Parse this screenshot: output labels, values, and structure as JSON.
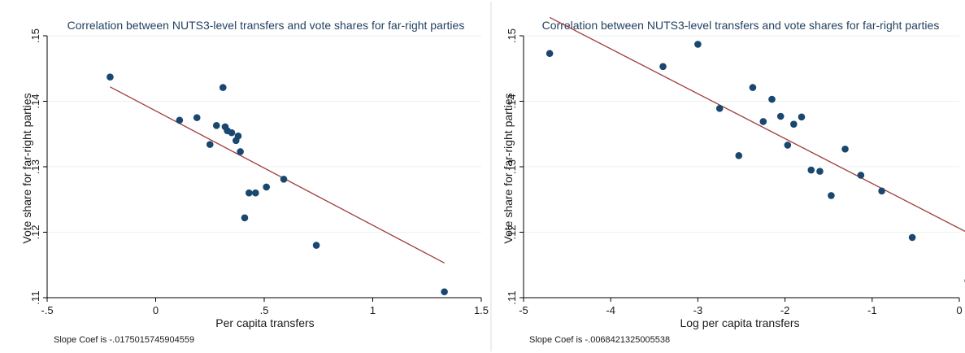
{
  "colors": {
    "marker": "#1a476f",
    "fit_line": "#a03d3d",
    "grid": "#eaf2f3",
    "axis": "#000000",
    "panel_border": "#dddddd"
  },
  "chart_data": [
    {
      "type": "scatter",
      "title": "Correlation between NUTS3-level transfers and vote shares for far-right parties",
      "xlabel": "Per capita transfers",
      "ylabel": "Vote share for far-right parties",
      "note": "Slope Coef is -.0175015745904559",
      "xlim": [
        -0.5,
        1.5
      ],
      "ylim": [
        0.11,
        0.15
      ],
      "xticks": [
        -0.5,
        0,
        0.5,
        1,
        1.5
      ],
      "xtick_labels": [
        "-.5",
        "0",
        ".5",
        "1",
        "1.5"
      ],
      "yticks": [
        0.11,
        0.12,
        0.13,
        0.14,
        0.15
      ],
      "ytick_labels": [
        ".11",
        ".12",
        ".13",
        ".14",
        ".15"
      ],
      "grid": true,
      "points": [
        {
          "x": -0.21,
          "y": 0.1437
        },
        {
          "x": 0.11,
          "y": 0.1371
        },
        {
          "x": 0.19,
          "y": 0.1375
        },
        {
          "x": 0.25,
          "y": 0.1334
        },
        {
          "x": 0.28,
          "y": 0.1363
        },
        {
          "x": 0.31,
          "y": 0.1421
        },
        {
          "x": 0.32,
          "y": 0.1361
        },
        {
          "x": 0.33,
          "y": 0.1355
        },
        {
          "x": 0.35,
          "y": 0.1352
        },
        {
          "x": 0.37,
          "y": 0.134
        },
        {
          "x": 0.38,
          "y": 0.1347
        },
        {
          "x": 0.39,
          "y": 0.1323
        },
        {
          "x": 0.41,
          "y": 0.1222
        },
        {
          "x": 0.43,
          "y": 0.126
        },
        {
          "x": 0.46,
          "y": 0.126
        },
        {
          "x": 0.51,
          "y": 0.1269
        },
        {
          "x": 0.59,
          "y": 0.1281
        },
        {
          "x": 0.74,
          "y": 0.118
        },
        {
          "x": 1.33,
          "y": 0.1109
        }
      ],
      "fit_line": {
        "x": [
          -0.21,
          1.33
        ],
        "y": [
          0.1422,
          0.1153
        ]
      }
    },
    {
      "type": "scatter",
      "title": "Correlation between NUTS3-level transfers and vote shares for far-right parties",
      "xlabel": "Log per capita transfers",
      "ylabel": "Vote share for far-right parties",
      "note": "Slope Coef is -.0068421325005538",
      "xlim": [
        -5,
        0
      ],
      "ylim": [
        0.11,
        0.15
      ],
      "xticks": [
        -5,
        -4,
        -3,
        -2,
        -1,
        0
      ],
      "xtick_labels": [
        "-5",
        "-4",
        "-3",
        "-2",
        "-1",
        "0"
      ],
      "yticks": [
        0.11,
        0.12,
        0.13,
        0.14,
        0.15
      ],
      "ytick_labels": [
        ".11",
        ".12",
        ".13",
        ".14",
        ".15"
      ],
      "grid": true,
      "points": [
        {
          "x": -4.7,
          "y": 0.1473
        },
        {
          "x": -3.4,
          "y": 0.1453
        },
        {
          "x": -3.0,
          "y": 0.1487
        },
        {
          "x": -2.75,
          "y": 0.1389
        },
        {
          "x": -2.53,
          "y": 0.1317
        },
        {
          "x": -2.37,
          "y": 0.1421
        },
        {
          "x": -2.25,
          "y": 0.1369
        },
        {
          "x": -2.15,
          "y": 0.1403
        },
        {
          "x": -2.05,
          "y": 0.1377
        },
        {
          "x": -1.97,
          "y": 0.1333
        },
        {
          "x": -1.9,
          "y": 0.1365
        },
        {
          "x": -1.81,
          "y": 0.1376
        },
        {
          "x": -1.7,
          "y": 0.1295
        },
        {
          "x": -1.6,
          "y": 0.1293
        },
        {
          "x": -1.47,
          "y": 0.1256
        },
        {
          "x": -1.31,
          "y": 0.1327
        },
        {
          "x": -1.13,
          "y": 0.1287
        },
        {
          "x": -0.89,
          "y": 0.1263
        },
        {
          "x": -0.54,
          "y": 0.1192
        },
        {
          "x": 0.1,
          "y": 0.1126
        }
      ],
      "fit_line": {
        "x": [
          -4.7,
          0.1
        ],
        "y": [
          0.1528,
          0.1199
        ]
      }
    }
  ]
}
